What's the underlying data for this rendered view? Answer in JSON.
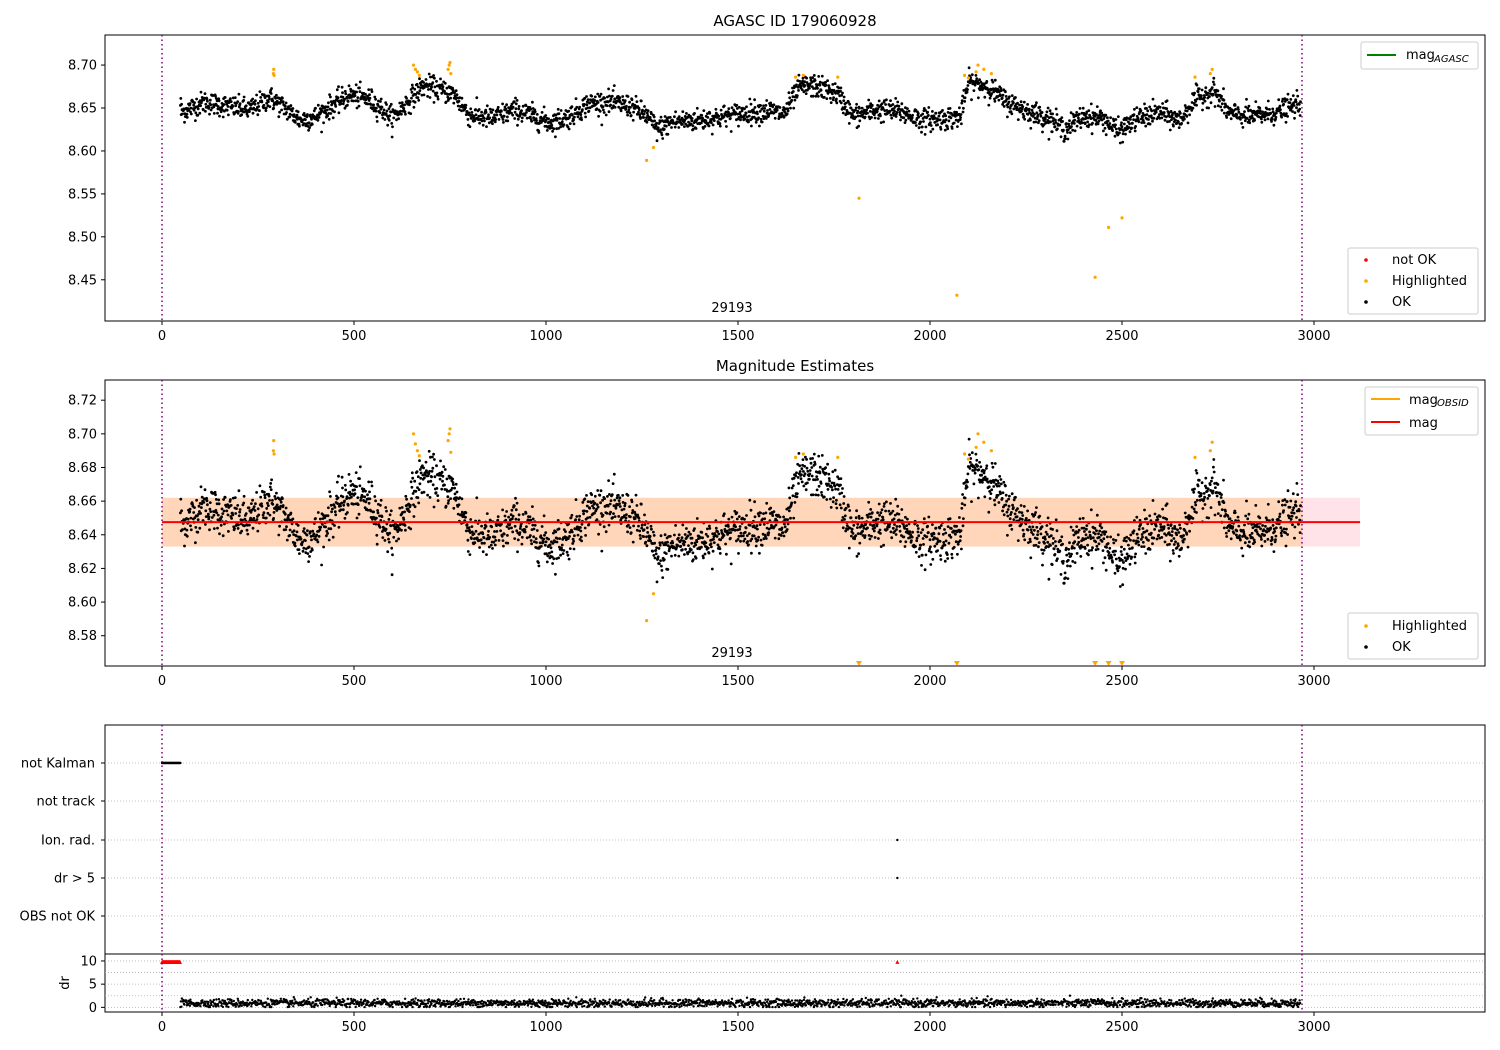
{
  "chart_data": [
    {
      "panel": "top",
      "type": "scatter",
      "title": "AGASC ID 179060928",
      "xlim": [
        -150,
        3450
      ],
      "ylim": [
        8.402,
        8.735
      ],
      "xticks": [
        "0",
        "500",
        "1000",
        "1500",
        "2000",
        "2500",
        "3000"
      ],
      "yticks": [
        "8.45",
        "8.50",
        "8.55",
        "8.60",
        "8.65",
        "8.70"
      ],
      "obsid_label": "29193",
      "obsid_label_x": 1480,
      "obs_bounds": [
        0,
        2970
      ],
      "legend_lines": [
        {
          "label": "mag",
          "sub": "AGASC",
          "color": "#008000"
        }
      ],
      "legend_markers": [
        {
          "label": "not OK",
          "color": "#ff0000"
        },
        {
          "label": "Highlighted",
          "color": "#ffa500"
        },
        {
          "label": "OK",
          "color": "#000000"
        }
      ],
      "ok_segments": [
        [
          50,
          8.645
        ],
        [
          110,
          8.657
        ],
        [
          170,
          8.652
        ],
        [
          230,
          8.648
        ],
        [
          280,
          8.662
        ],
        [
          320,
          8.65
        ],
        [
          360,
          8.636
        ],
        [
          400,
          8.64
        ],
        [
          440,
          8.652
        ],
        [
          490,
          8.665
        ],
        [
          540,
          8.66
        ],
        [
          570,
          8.65
        ],
        [
          600,
          8.638
        ],
        [
          640,
          8.657
        ],
        [
          680,
          8.676
        ],
        [
          720,
          8.672
        ],
        [
          760,
          8.666
        ],
        [
          800,
          8.642
        ],
        [
          860,
          8.638
        ],
        [
          920,
          8.648
        ],
        [
          970,
          8.64
        ],
        [
          1010,
          8.633
        ],
        [
          1060,
          8.64
        ],
        [
          1110,
          8.655
        ],
        [
          1160,
          8.657
        ],
        [
          1220,
          8.652
        ],
        [
          1260,
          8.642
        ],
        [
          1290,
          8.625
        ],
        [
          1330,
          8.634
        ],
        [
          1400,
          8.636
        ],
        [
          1460,
          8.64
        ],
        [
          1530,
          8.645
        ],
        [
          1580,
          8.647
        ],
        [
          1620,
          8.643
        ],
        [
          1660,
          8.674
        ],
        [
          1700,
          8.676
        ],
        [
          1760,
          8.666
        ],
        [
          1800,
          8.64
        ],
        [
          1860,
          8.648
        ],
        [
          1920,
          8.646
        ],
        [
          1980,
          8.636
        ],
        [
          2040,
          8.638
        ],
        [
          2080,
          8.64
        ],
        [
          2100,
          8.68
        ],
        [
          2150,
          8.675
        ],
        [
          2200,
          8.657
        ],
        [
          2260,
          8.645
        ],
        [
          2310,
          8.638
        ],
        [
          2350,
          8.625
        ],
        [
          2400,
          8.64
        ],
        [
          2450,
          8.638
        ],
        [
          2490,
          8.622
        ],
        [
          2540,
          8.638
        ],
        [
          2600,
          8.645
        ],
        [
          2650,
          8.635
        ],
        [
          2690,
          8.66
        ],
        [
          2740,
          8.67
        ],
        [
          2780,
          8.643
        ],
        [
          2840,
          8.64
        ],
        [
          2900,
          8.645
        ],
        [
          2965,
          8.655
        ]
      ],
      "highlighted": [
        [
          290,
          8.69
        ],
        [
          291,
          8.695
        ],
        [
          292,
          8.688
        ],
        [
          655,
          8.7
        ],
        [
          660,
          8.695
        ],
        [
          665,
          8.692
        ],
        [
          670,
          8.688
        ],
        [
          745,
          8.695
        ],
        [
          748,
          8.7
        ],
        [
          750,
          8.703
        ],
        [
          752,
          8.69
        ],
        [
          1262,
          8.589
        ],
        [
          1280,
          8.604
        ],
        [
          1650,
          8.686
        ],
        [
          1670,
          8.688
        ],
        [
          1760,
          8.686
        ],
        [
          1815,
          8.545
        ],
        [
          2070,
          8.432
        ],
        [
          2090,
          8.688
        ],
        [
          2100,
          8.685
        ],
        [
          2120,
          8.692
        ],
        [
          2125,
          8.7
        ],
        [
          2140,
          8.695
        ],
        [
          2160,
          8.69
        ],
        [
          2430,
          8.453
        ],
        [
          2465,
          8.511
        ],
        [
          2500,
          8.522
        ],
        [
          2690,
          8.686
        ],
        [
          2730,
          8.69
        ],
        [
          2735,
          8.695
        ]
      ]
    },
    {
      "panel": "middle",
      "type": "scatter",
      "title": "Magnitude Estimates",
      "xlim": [
        -150,
        3450
      ],
      "ylim": [
        8.562,
        8.732
      ],
      "xticks": [
        "0",
        "500",
        "1000",
        "1500",
        "2000",
        "2500",
        "3000"
      ],
      "yticks": [
        "8.58",
        "8.60",
        "8.62",
        "8.64",
        "8.66",
        "8.68",
        "8.70",
        "8.72"
      ],
      "obsid_label": "29193",
      "obsid_label_x": 1480,
      "obs_bounds": [
        0,
        2970
      ],
      "mag": 8.6475,
      "mag_sigma": 0.0145,
      "band_range": [
        0,
        3120
      ],
      "legend_lines": [
        {
          "label": "mag",
          "sub": "OBSID",
          "color": "#ffa500"
        },
        {
          "label": "mag",
          "sub": "",
          "color": "#ff0000"
        }
      ],
      "legend_markers": [
        {
          "label": "Highlighted",
          "color": "#ffa500"
        },
        {
          "label": "OK",
          "color": "#000000"
        }
      ],
      "offscale_low_x": [
        1815,
        2070,
        2430,
        2465,
        2500
      ],
      "highlighted": [
        [
          290,
          8.69
        ],
        [
          291,
          8.696
        ],
        [
          292,
          8.688
        ],
        [
          655,
          8.7
        ],
        [
          660,
          8.694
        ],
        [
          665,
          8.69
        ],
        [
          670,
          8.687
        ],
        [
          745,
          8.696
        ],
        [
          748,
          8.7
        ],
        [
          750,
          8.703
        ],
        [
          752,
          8.689
        ],
        [
          1262,
          8.589
        ],
        [
          1280,
          8.605
        ],
        [
          1650,
          8.686
        ],
        [
          1670,
          8.688
        ],
        [
          1760,
          8.686
        ],
        [
          2090,
          8.688
        ],
        [
          2100,
          8.685
        ],
        [
          2120,
          8.692
        ],
        [
          2125,
          8.7
        ],
        [
          2140,
          8.695
        ],
        [
          2160,
          8.69
        ],
        [
          2690,
          8.686
        ],
        [
          2730,
          8.69
        ],
        [
          2735,
          8.695
        ]
      ]
    },
    {
      "panel": "flags",
      "type": "scatter",
      "xlim": [
        -150,
        3450
      ],
      "categories": [
        "not Kalman",
        "not track",
        "Ion. rad.",
        "dr > 5",
        "OBS not OK"
      ],
      "obs_bounds": [
        0,
        2970
      ],
      "not_kalman_x_range": [
        0,
        48
      ],
      "ion_rad_x": [
        1915
      ],
      "dr_gt_5_x": [
        1915
      ]
    },
    {
      "panel": "dr",
      "type": "scatter",
      "ylabel": "dr",
      "xlim": [
        -150,
        3450
      ],
      "ylim": [
        -1,
        11.5
      ],
      "xticks": [
        "0",
        "500",
        "1000",
        "1500",
        "2000",
        "2500",
        "3000"
      ],
      "yticks": [
        "0",
        "5",
        "10"
      ],
      "obs_bounds": [
        0,
        2970
      ],
      "red_x_range": [
        0,
        48
      ],
      "red_y": 9.8,
      "red_single": [
        [
          1915,
          9.8
        ]
      ],
      "data_range": [
        48,
        2965
      ],
      "typical_dr": 0.9
    }
  ]
}
